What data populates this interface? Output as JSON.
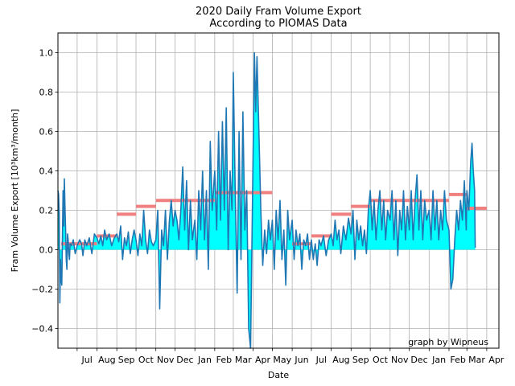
{
  "chart_data": {
    "type": "line",
    "title_lines": [
      "2020 Daily Fram Volume Export",
      "According to PIOMAS Data"
    ],
    "xlabel": "Date",
    "ylabel": "Fram Volume Export [10³km³/month]",
    "credit": "graph by Wipneus",
    "x_tick_labels": [
      "Jul",
      "Aug",
      "Sep",
      "Oct",
      "Nov",
      "Dec",
      "Jan",
      "Feb",
      "Mar",
      "Apr",
      "May",
      "Jun",
      "Jul",
      "Aug",
      "Sep",
      "Oct",
      "Nov",
      "Dec",
      "Jan",
      "Feb",
      "Mar",
      "Apr"
    ],
    "y_ticks": [
      -0.4,
      -0.2,
      0.0,
      0.2,
      0.4,
      0.6,
      0.8,
      1.0
    ],
    "y_tick_labels": [
      "−0.4",
      "−0.2",
      "0.0",
      "0.2",
      "0.4",
      "0.6",
      "0.8",
      "1.0"
    ],
    "ylim": [
      -0.5,
      1.1
    ],
    "xlim": [
      "2019-06-01",
      "2021-04-20"
    ],
    "grid": true,
    "colors": {
      "daily": "#1f77b4",
      "fill": "#00ffff",
      "monthly": "#f08080"
    },
    "monthly_series": {
      "name": "",
      "points": [
        {
          "start": "2019-06-06",
          "end": "2019-07-01",
          "value": 0.03
        },
        {
          "start": "2019-07-01",
          "end": "2019-08-01",
          "value": 0.03
        },
        {
          "start": "2019-08-01",
          "end": "2019-09-01",
          "value": 0.07
        },
        {
          "start": "2019-09-01",
          "end": "2019-10-01",
          "value": 0.18
        },
        {
          "start": "2019-10-01",
          "end": "2019-11-01",
          "value": 0.22
        },
        {
          "start": "2019-11-01",
          "end": "2019-12-01",
          "value": 0.25
        },
        {
          "start": "2019-12-01",
          "end": "2020-01-01",
          "value": 0.25
        },
        {
          "start": "2020-01-01",
          "end": "2020-02-01",
          "value": 0.25
        },
        {
          "start": "2020-02-01",
          "end": "2020-03-01",
          "value": 0.29
        },
        {
          "start": "2020-03-01",
          "end": "2020-04-01",
          "value": 0.29
        },
        {
          "start": "2020-04-01",
          "end": "2020-05-01",
          "value": 0.29
        },
        {
          "start": "2020-06-01",
          "end": "2020-07-01",
          "value": 0.03
        },
        {
          "start": "2020-07-01",
          "end": "2020-08-01",
          "value": 0.07
        },
        {
          "start": "2020-08-01",
          "end": "2020-09-01",
          "value": 0.18
        },
        {
          "start": "2020-09-01",
          "end": "2020-10-01",
          "value": 0.22
        },
        {
          "start": "2020-10-01",
          "end": "2020-11-01",
          "value": 0.25
        },
        {
          "start": "2020-11-01",
          "end": "2020-12-01",
          "value": 0.25
        },
        {
          "start": "2020-12-01",
          "end": "2021-01-01",
          "value": 0.25
        },
        {
          "start": "2021-01-01",
          "end": "2021-02-01",
          "value": 0.25
        },
        {
          "start": "2021-02-01",
          "end": "2021-03-01",
          "value": 0.28
        },
        {
          "start": "2021-03-01",
          "end": "2021-04-01",
          "value": 0.21
        }
      ]
    },
    "daily_series": {
      "name": "",
      "points": [
        [
          "2019-06-01",
          0.3
        ],
        [
          "2019-06-02",
          0.28
        ],
        [
          "2019-06-03",
          0.18
        ],
        [
          "2019-06-04",
          -0.27
        ],
        [
          "2019-06-05",
          -0.05
        ],
        [
          "2019-06-06",
          -0.15
        ],
        [
          "2019-06-07",
          -0.18
        ],
        [
          "2019-06-08",
          0.05
        ],
        [
          "2019-06-09",
          0.3
        ],
        [
          "2019-06-10",
          0.12
        ],
        [
          "2019-06-11",
          0.36
        ],
        [
          "2019-06-12",
          0.22
        ],
        [
          "2019-06-13",
          0.1
        ],
        [
          "2019-06-14",
          -0.05
        ],
        [
          "2019-06-15",
          -0.1
        ],
        [
          "2019-06-16",
          0.08
        ],
        [
          "2019-06-17",
          0.05
        ],
        [
          "2019-06-18",
          -0.02
        ],
        [
          "2019-06-19",
          -0.05
        ],
        [
          "2019-06-20",
          0.03
        ],
        [
          "2019-06-22",
          0.02
        ],
        [
          "2019-06-25",
          0.05
        ],
        [
          "2019-06-28",
          -0.02
        ],
        [
          "2019-07-01",
          0.02
        ],
        [
          "2019-07-05",
          0.05
        ],
        [
          "2019-07-08",
          0.03
        ],
        [
          "2019-07-10",
          -0.03
        ],
        [
          "2019-07-13",
          0.05
        ],
        [
          "2019-07-16",
          0.02
        ],
        [
          "2019-07-20",
          0.06
        ],
        [
          "2019-07-24",
          -0.02
        ],
        [
          "2019-07-28",
          0.08
        ],
        [
          "2019-08-01",
          0.06
        ],
        [
          "2019-08-04",
          0.03
        ],
        [
          "2019-08-07",
          0.07
        ],
        [
          "2019-08-10",
          0.02
        ],
        [
          "2019-08-13",
          0.1
        ],
        [
          "2019-08-16",
          0.05
        ],
        [
          "2019-08-20",
          0.08
        ],
        [
          "2019-08-24",
          0.02
        ],
        [
          "2019-08-28",
          0.06
        ],
        [
          "2019-09-01",
          0.08
        ],
        [
          "2019-09-04",
          0.04
        ],
        [
          "2019-09-07",
          0.12
        ],
        [
          "2019-09-10",
          -0.05
        ],
        [
          "2019-09-13",
          0.06
        ],
        [
          "2019-09-16",
          0.02
        ],
        [
          "2019-09-19",
          0.09
        ],
        [
          "2019-09-22",
          -0.02
        ],
        [
          "2019-09-25",
          0.05
        ],
        [
          "2019-09-28",
          0.1
        ],
        [
          "2019-10-01",
          0.05
        ],
        [
          "2019-10-04",
          -0.03
        ],
        [
          "2019-10-07",
          0.08
        ],
        [
          "2019-10-10",
          0.02
        ],
        [
          "2019-10-13",
          0.2
        ],
        [
          "2019-10-16",
          0.05
        ],
        [
          "2019-10-19",
          -0.02
        ],
        [
          "2019-10-22",
          0.1
        ],
        [
          "2019-10-25",
          0.04
        ],
        [
          "2019-10-28",
          0.02
        ],
        [
          "2019-11-01",
          0.05
        ],
        [
          "2019-11-04",
          0.2
        ],
        [
          "2019-11-07",
          -0.3
        ],
        [
          "2019-11-10",
          0.1
        ],
        [
          "2019-11-13",
          0.02
        ],
        [
          "2019-11-16",
          0.2
        ],
        [
          "2019-11-19",
          -0.05
        ],
        [
          "2019-11-22",
          0.14
        ],
        [
          "2019-11-25",
          0.25
        ],
        [
          "2019-11-28",
          0.12
        ],
        [
          "2019-12-01",
          0.2
        ],
        [
          "2019-12-04",
          0.15
        ],
        [
          "2019-12-07",
          0.05
        ],
        [
          "2019-12-10",
          0.2
        ],
        [
          "2019-12-13",
          0.42
        ],
        [
          "2019-12-16",
          0.1
        ],
        [
          "2019-12-19",
          0.35
        ],
        [
          "2019-12-22",
          0.0
        ],
        [
          "2019-12-25",
          0.25
        ],
        [
          "2019-12-28",
          0.05
        ],
        [
          "2020-01-01",
          0.15
        ],
        [
          "2020-01-04",
          -0.05
        ],
        [
          "2020-01-07",
          0.3
        ],
        [
          "2020-01-10",
          0.1
        ],
        [
          "2020-01-13",
          0.4
        ],
        [
          "2020-01-16",
          0.05
        ],
        [
          "2020-01-19",
          0.3
        ],
        [
          "2020-01-22",
          -0.1
        ],
        [
          "2020-01-25",
          0.55
        ],
        [
          "2020-01-28",
          0.2
        ],
        [
          "2020-02-01",
          0.4
        ],
        [
          "2020-02-04",
          0.1
        ],
        [
          "2020-02-07",
          0.6
        ],
        [
          "2020-02-10",
          0.15
        ],
        [
          "2020-02-13",
          0.65
        ],
        [
          "2020-02-16",
          0.2
        ],
        [
          "2020-02-19",
          0.72
        ],
        [
          "2020-02-22",
          0.0
        ],
        [
          "2020-02-25",
          0.4
        ],
        [
          "2020-02-28",
          0.2
        ],
        [
          "2020-03-01",
          0.9
        ],
        [
          "2020-03-04",
          0.3
        ],
        [
          "2020-03-07",
          -0.22
        ],
        [
          "2020-03-10",
          0.6
        ],
        [
          "2020-03-13",
          -0.05
        ],
        [
          "2020-03-16",
          0.7
        ],
        [
          "2020-03-19",
          0.1
        ],
        [
          "2020-03-22",
          0.3
        ],
        [
          "2020-03-25",
          -0.4
        ],
        [
          "2020-03-28",
          -0.5
        ],
        [
          "2020-04-01",
          0.5
        ],
        [
          "2020-04-03",
          1.0
        ],
        [
          "2020-04-05",
          0.7
        ],
        [
          "2020-04-07",
          0.98
        ],
        [
          "2020-04-10",
          0.6
        ],
        [
          "2020-04-13",
          0.2
        ],
        [
          "2020-04-16",
          -0.08
        ],
        [
          "2020-04-19",
          0.1
        ],
        [
          "2020-04-22",
          -0.02
        ],
        [
          "2020-04-25",
          0.15
        ],
        [
          "2020-04-28",
          0.05
        ],
        [
          "2020-05-01",
          0.15
        ],
        [
          "2020-05-04",
          -0.1
        ],
        [
          "2020-05-07",
          0.2
        ],
        [
          "2020-05-10",
          0.05
        ],
        [
          "2020-05-13",
          0.25
        ],
        [
          "2020-05-16",
          -0.05
        ],
        [
          "2020-05-19",
          0.1
        ],
        [
          "2020-05-22",
          -0.18
        ],
        [
          "2020-05-25",
          0.2
        ],
        [
          "2020-05-28",
          0.05
        ],
        [
          "2020-06-01",
          0.15
        ],
        [
          "2020-06-04",
          -0.05
        ],
        [
          "2020-06-07",
          0.1
        ],
        [
          "2020-06-10",
          0.02
        ],
        [
          "2020-06-13",
          0.08
        ],
        [
          "2020-06-16",
          -0.1
        ],
        [
          "2020-06-19",
          0.05
        ],
        [
          "2020-06-22",
          0.02
        ],
        [
          "2020-06-25",
          0.08
        ],
        [
          "2020-06-28",
          -0.05
        ],
        [
          "2020-07-01",
          0.05
        ],
        [
          "2020-07-04",
          -0.05
        ],
        [
          "2020-07-07",
          0.03
        ],
        [
          "2020-07-10",
          -0.08
        ],
        [
          "2020-07-13",
          0.05
        ],
        [
          "2020-07-16",
          0.02
        ],
        [
          "2020-07-20",
          0.07
        ],
        [
          "2020-07-24",
          -0.03
        ],
        [
          "2020-07-28",
          0.05
        ],
        [
          "2020-08-01",
          0.08
        ],
        [
          "2020-08-04",
          0.02
        ],
        [
          "2020-08-07",
          0.15
        ],
        [
          "2020-08-10",
          0.05
        ],
        [
          "2020-08-13",
          0.1
        ],
        [
          "2020-08-16",
          -0.02
        ],
        [
          "2020-08-20",
          0.12
        ],
        [
          "2020-08-24",
          0.05
        ],
        [
          "2020-08-28",
          0.16
        ],
        [
          "2020-09-01",
          0.08
        ],
        [
          "2020-09-04",
          0.2
        ],
        [
          "2020-09-07",
          -0.05
        ],
        [
          "2020-09-10",
          0.15
        ],
        [
          "2020-09-13",
          0.05
        ],
        [
          "2020-09-16",
          0.12
        ],
        [
          "2020-09-19",
          0.02
        ],
        [
          "2020-09-22",
          0.1
        ],
        [
          "2020-09-25",
          -0.02
        ],
        [
          "2020-09-28",
          0.2
        ],
        [
          "2020-10-01",
          0.3
        ],
        [
          "2020-10-04",
          0.1
        ],
        [
          "2020-10-07",
          0.25
        ],
        [
          "2020-10-10",
          0.05
        ],
        [
          "2020-10-13",
          0.2
        ],
        [
          "2020-10-16",
          0.3
        ],
        [
          "2020-10-19",
          0.1
        ],
        [
          "2020-10-22",
          0.25
        ],
        [
          "2020-10-25",
          0.05
        ],
        [
          "2020-10-28",
          0.2
        ],
        [
          "2020-11-01",
          0.15
        ],
        [
          "2020-11-04",
          0.3
        ],
        [
          "2020-11-07",
          0.05
        ],
        [
          "2020-11-10",
          0.25
        ],
        [
          "2020-11-13",
          -0.03
        ],
        [
          "2020-11-16",
          0.2
        ],
        [
          "2020-11-19",
          0.1
        ],
        [
          "2020-11-22",
          0.3
        ],
        [
          "2020-11-25",
          0.05
        ],
        [
          "2020-11-28",
          0.22
        ],
        [
          "2020-12-01",
          0.1
        ],
        [
          "2020-12-04",
          0.3
        ],
        [
          "2020-12-07",
          0.05
        ],
        [
          "2020-12-10",
          0.25
        ],
        [
          "2020-12-13",
          0.38
        ],
        [
          "2020-12-16",
          0.1
        ],
        [
          "2020-12-19",
          0.3
        ],
        [
          "2020-12-22",
          0.05
        ],
        [
          "2020-12-25",
          0.25
        ],
        [
          "2020-12-28",
          0.15
        ],
        [
          "2021-01-01",
          0.2
        ],
        [
          "2021-01-04",
          0.05
        ],
        [
          "2021-01-07",
          0.3
        ],
        [
          "2021-01-10",
          0.1
        ],
        [
          "2021-01-13",
          0.25
        ],
        [
          "2021-01-16",
          0.05
        ],
        [
          "2021-01-19",
          0.2
        ],
        [
          "2021-01-22",
          0.1
        ],
        [
          "2021-01-25",
          0.3
        ],
        [
          "2021-01-28",
          0.15
        ],
        [
          "2021-02-01",
          0.1
        ],
        [
          "2021-02-04",
          -0.2
        ],
        [
          "2021-02-07",
          -0.15
        ],
        [
          "2021-02-10",
          0.05
        ],
        [
          "2021-02-13",
          0.2
        ],
        [
          "2021-02-16",
          0.1
        ],
        [
          "2021-02-19",
          0.25
        ],
        [
          "2021-02-22",
          0.15
        ],
        [
          "2021-02-25",
          0.35
        ],
        [
          "2021-02-28",
          0.1
        ],
        [
          "2021-03-01",
          0.3
        ],
        [
          "2021-03-04",
          0.2
        ],
        [
          "2021-03-07",
          0.45
        ],
        [
          "2021-03-09",
          0.54
        ],
        [
          "2021-03-11",
          0.4
        ],
        [
          "2021-03-13",
          0.3
        ],
        [
          "2021-03-14",
          0.01
        ]
      ]
    }
  }
}
